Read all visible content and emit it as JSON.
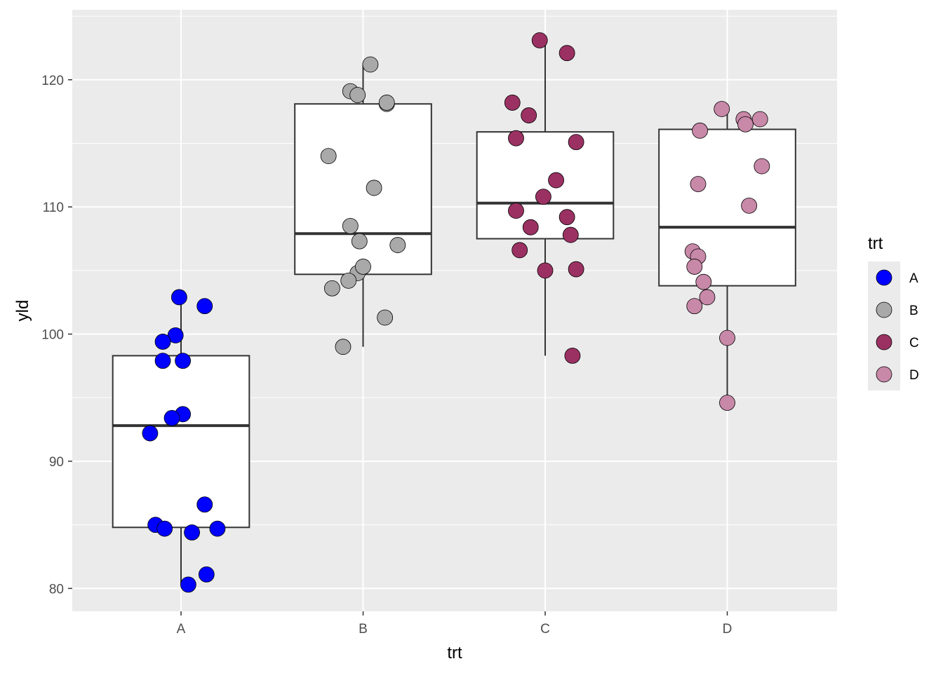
{
  "chart_data": {
    "type": "box",
    "xlabel": "trt",
    "ylabel": "yld",
    "categories": [
      "A",
      "B",
      "C",
      "D"
    ],
    "ylim": [
      78.2,
      125.5
    ],
    "yticks": [
      80,
      90,
      100,
      110,
      120
    ],
    "grid": true,
    "legend": {
      "title": "trt",
      "position": "right",
      "entries": [
        "A",
        "B",
        "C",
        "D"
      ]
    },
    "colors": {
      "A": "#0000ff",
      "B": "#a9a9a9",
      "C": "#9b3163",
      "D": "#c888a8",
      "panel_bg": "#ebebeb",
      "grid": "#ffffff",
      "box_fill": "#ffffff",
      "box_line": "#333333"
    },
    "boxes": [
      {
        "category": "A",
        "lower_whisker": 80.3,
        "q1": 84.8,
        "median": 92.8,
        "q3": 98.3,
        "upper_whisker": 102.9
      },
      {
        "category": "B",
        "lower_whisker": 99.0,
        "q1": 104.7,
        "median": 107.9,
        "q3": 118.1,
        "upper_whisker": 121.2
      },
      {
        "category": "C",
        "lower_whisker": 98.3,
        "q1": 107.5,
        "median": 110.3,
        "q3": 115.9,
        "upper_whisker": 123.1
      },
      {
        "category": "D",
        "lower_whisker": 94.6,
        "q1": 103.8,
        "median": 108.4,
        "q3": 116.1,
        "upper_whisker": 117.7
      }
    ],
    "series": [
      {
        "name": "A",
        "points": [
          {
            "x": -0.01,
            "y": 102.9
          },
          {
            "x": 0.13,
            "y": 102.2
          },
          {
            "x": -0.03,
            "y": 99.9
          },
          {
            "x": -0.1,
            "y": 99.4
          },
          {
            "x": -0.1,
            "y": 97.9
          },
          {
            "x": 0.01,
            "y": 97.9
          },
          {
            "x": 0.01,
            "y": 93.7
          },
          {
            "x": -0.05,
            "y": 93.4
          },
          {
            "x": -0.17,
            "y": 92.2
          },
          {
            "x": 0.13,
            "y": 86.6
          },
          {
            "x": -0.14,
            "y": 85.0
          },
          {
            "x": -0.09,
            "y": 84.7
          },
          {
            "x": 0.06,
            "y": 84.4
          },
          {
            "x": 0.2,
            "y": 84.7
          },
          {
            "x": 0.14,
            "y": 81.1
          },
          {
            "x": 0.04,
            "y": 80.3
          }
        ]
      },
      {
        "name": "B",
        "points": [
          {
            "x": 0.04,
            "y": 121.2
          },
          {
            "x": -0.07,
            "y": 119.1
          },
          {
            "x": -0.03,
            "y": 118.8
          },
          {
            "x": 0.13,
            "y": 118.1
          },
          {
            "x": 0.13,
            "y": 118.2
          },
          {
            "x": -0.19,
            "y": 114.0
          },
          {
            "x": 0.06,
            "y": 111.5
          },
          {
            "x": -0.07,
            "y": 108.5
          },
          {
            "x": -0.02,
            "y": 107.3
          },
          {
            "x": 0.19,
            "y": 107.0
          },
          {
            "x": -0.03,
            "y": 104.8
          },
          {
            "x": 0.0,
            "y": 105.3
          },
          {
            "x": -0.08,
            "y": 104.2
          },
          {
            "x": -0.17,
            "y": 103.6
          },
          {
            "x": 0.12,
            "y": 101.3
          },
          {
            "x": -0.11,
            "y": 99.0
          }
        ]
      },
      {
        "name": "C",
        "points": [
          {
            "x": -0.03,
            "y": 123.1
          },
          {
            "x": 0.12,
            "y": 122.1
          },
          {
            "x": -0.18,
            "y": 118.2
          },
          {
            "x": -0.09,
            "y": 117.2
          },
          {
            "x": -0.16,
            "y": 115.4
          },
          {
            "x": 0.17,
            "y": 115.1
          },
          {
            "x": 0.06,
            "y": 112.1
          },
          {
            "x": -0.01,
            "y": 110.8
          },
          {
            "x": -0.16,
            "y": 109.7
          },
          {
            "x": 0.12,
            "y": 109.2
          },
          {
            "x": -0.08,
            "y": 108.4
          },
          {
            "x": 0.14,
            "y": 107.8
          },
          {
            "x": -0.14,
            "y": 106.6
          },
          {
            "x": 0.0,
            "y": 105.0
          },
          {
            "x": 0.17,
            "y": 105.1
          },
          {
            "x": 0.15,
            "y": 98.3
          }
        ]
      },
      {
        "name": "D",
        "points": [
          {
            "x": -0.03,
            "y": 117.7
          },
          {
            "x": 0.09,
            "y": 116.9
          },
          {
            "x": 0.18,
            "y": 116.9
          },
          {
            "x": 0.1,
            "y": 116.5
          },
          {
            "x": -0.15,
            "y": 116.0
          },
          {
            "x": 0.19,
            "y": 113.2
          },
          {
            "x": -0.16,
            "y": 111.8
          },
          {
            "x": 0.12,
            "y": 110.1
          },
          {
            "x": -0.19,
            "y": 106.5
          },
          {
            "x": -0.16,
            "y": 106.1
          },
          {
            "x": -0.18,
            "y": 105.3
          },
          {
            "x": -0.13,
            "y": 104.1
          },
          {
            "x": -0.11,
            "y": 102.9
          },
          {
            "x": -0.18,
            "y": 102.2
          },
          {
            "x": 0.0,
            "y": 99.7
          },
          {
            "x": 0.0,
            "y": 94.6
          }
        ]
      }
    ]
  }
}
